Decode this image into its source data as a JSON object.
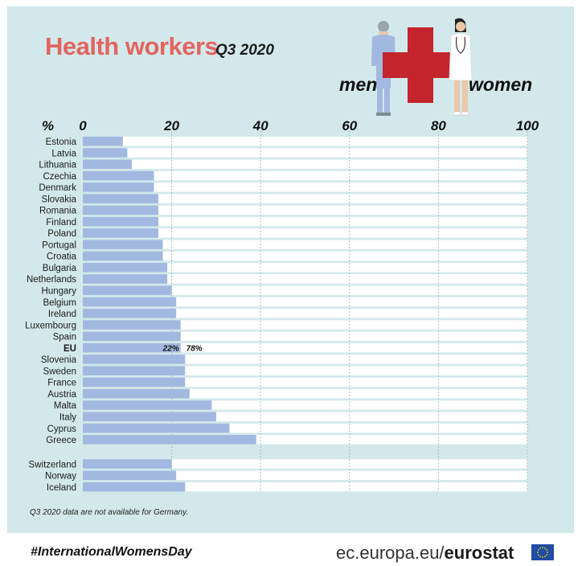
{
  "title": "Health workers",
  "subtitle": "Q3 2020",
  "legend": {
    "men": "men",
    "women": "women"
  },
  "note": "Q3 2020 data are not available for Germany.",
  "hashtag": "#InternationalWomensDay",
  "source": {
    "domain": "ec.europa.eu/",
    "brand": "eurostat"
  },
  "colors": {
    "men": "#a3b8e0",
    "women": "#ffffff",
    "background": "#d3e8ea",
    "title": "#e2645f",
    "cross": "#c4242b"
  },
  "chart_data": {
    "type": "bar",
    "orientation": "horizontal-stacked",
    "unit_label": "%",
    "xlim": [
      0,
      100
    ],
    "xticks": [
      0,
      20,
      40,
      60,
      80,
      100
    ],
    "categories": [
      "Estonia",
      "Latvia",
      "Lithuania",
      "Czechia",
      "Denmark",
      "Slovakia",
      "Romania",
      "Finland",
      "Poland",
      "Portugal",
      "Croatia",
      "Bulgaria",
      "Netherlands",
      "Hungary",
      "Belgium",
      "Ireland",
      "Luxembourg",
      "Spain",
      "EU",
      "Slovenia",
      "Sweden",
      "France",
      "Austria",
      "Malta",
      "Italy",
      "Cyprus",
      "Greece",
      "Switzerland",
      "Norway",
      "Iceland"
    ],
    "groups_break_after": "Greece",
    "highlight_category": "EU",
    "series": [
      {
        "name": "men",
        "values": [
          9,
          10,
          11,
          16,
          16,
          17,
          17,
          17,
          17,
          18,
          18,
          19,
          19,
          20,
          21,
          21,
          22,
          22,
          22,
          23,
          23,
          23,
          24,
          29,
          30,
          33,
          39,
          20,
          21,
          23
        ]
      },
      {
        "name": "women",
        "values": [
          91,
          90,
          89,
          84,
          84,
          83,
          83,
          83,
          83,
          82,
          82,
          81,
          81,
          80,
          79,
          79,
          78,
          78,
          78,
          77,
          77,
          77,
          76,
          71,
          70,
          67,
          61,
          80,
          79,
          77
        ]
      }
    ],
    "annotations": [
      {
        "category": "EU",
        "men_label": "22%",
        "women_label": "78%"
      }
    ]
  }
}
